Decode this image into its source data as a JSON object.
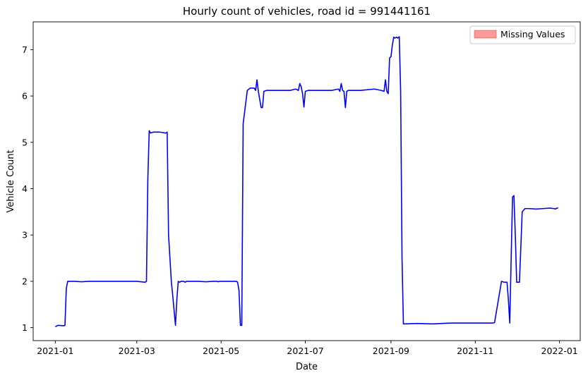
{
  "chart_data": {
    "type": "line",
    "title": "Hourly count of vehicles, road id = 991441161",
    "xlabel": "Date",
    "ylabel": "Vehicle Count",
    "xlim": [
      "2020-12-16",
      "2022-01-16"
    ],
    "ylim": [
      0.72,
      7.6
    ],
    "x_ticks": [
      "2021-01",
      "2021-03",
      "2021-05",
      "2021-07",
      "2021-09",
      "2021-11",
      "2022-01"
    ],
    "y_ticks": [
      1,
      2,
      3,
      4,
      5,
      6,
      7
    ],
    "grid": false,
    "legend_position": "top-right",
    "colors": {
      "line": "#0000ff",
      "missing_fill": "#ff9999",
      "missing_edge": "#ff0000"
    },
    "series": [
      {
        "name": "",
        "x": [
          "2021-01-01",
          "2021-01-03",
          "2021-01-07",
          "2021-01-08",
          "2021-01-09",
          "2021-01-10",
          "2021-01-15",
          "2021-01-20",
          "2021-01-25",
          "2021-02-01",
          "2021-02-10",
          "2021-02-20",
          "2021-03-01",
          "2021-03-07",
          "2021-03-08",
          "2021-03-09",
          "2021-03-10",
          "2021-03-11",
          "2021-03-13",
          "2021-03-18",
          "2021-03-22",
          "2021-03-23",
          "2021-03-24",
          "2021-03-26",
          "2021-03-27",
          "2021-03-29",
          "2021-03-30",
          "2021-03-31",
          "2021-04-01",
          "2021-04-02",
          "2021-04-03",
          "2021-04-04",
          "2021-04-05",
          "2021-04-06",
          "2021-04-15",
          "2021-04-20",
          "2021-04-25",
          "2021-04-28",
          "2021-04-29",
          "2021-04-30",
          "2021-05-01",
          "2021-05-05",
          "2021-05-10",
          "2021-05-12",
          "2021-05-13",
          "2021-05-14",
          "2021-05-15",
          "2021-05-16",
          "2021-05-17",
          "2021-05-20",
          "2021-05-22",
          "2021-05-25",
          "2021-05-26",
          "2021-05-27",
          "2021-05-28",
          "2021-05-30",
          "2021-05-31",
          "2021-06-01",
          "2021-06-03",
          "2021-06-10",
          "2021-06-20",
          "2021-06-24",
          "2021-06-26",
          "2021-06-27",
          "2021-06-28",
          "2021-06-29",
          "2021-06-30",
          "2021-07-01",
          "2021-07-03",
          "2021-07-10",
          "2021-07-20",
          "2021-07-25",
          "2021-07-26",
          "2021-07-27",
          "2021-07-28",
          "2021-07-29",
          "2021-07-30",
          "2021-07-31",
          "2021-08-01",
          "2021-08-03",
          "2021-08-10",
          "2021-08-20",
          "2021-08-25",
          "2021-08-27",
          "2021-08-28",
          "2021-08-29",
          "2021-08-30",
          "2021-08-31",
          "2021-09-01",
          "2021-09-02",
          "2021-09-03",
          "2021-09-04",
          "2021-09-05",
          "2021-09-06",
          "2021-09-07",
          "2021-09-08",
          "2021-09-09",
          "2021-09-10",
          "2021-09-20",
          "2021-10-01",
          "2021-10-15",
          "2021-11-01",
          "2021-11-10",
          "2021-11-13",
          "2021-11-14",
          "2021-11-15",
          "2021-11-20",
          "2021-11-22",
          "2021-11-23",
          "2021-11-24",
          "2021-11-25",
          "2021-11-26",
          "2021-11-27",
          "2021-11-28",
          "2021-11-29",
          "2021-11-30",
          "2021-12-01",
          "2021-12-02",
          "2021-12-03",
          "2021-12-05",
          "2021-12-07",
          "2021-12-10",
          "2021-12-15",
          "2021-12-20",
          "2021-12-25",
          "2021-12-28",
          "2021-12-29",
          "2021-12-30",
          "2021-12-31"
        ],
        "values": [
          1.02,
          1.05,
          1.04,
          1.05,
          1.85,
          2.0,
          2.0,
          1.99,
          2.0,
          2.0,
          2.0,
          2.0,
          2.0,
          1.98,
          2.0,
          4.2,
          5.25,
          5.2,
          5.22,
          5.22,
          5.2,
          5.22,
          3.0,
          2.0,
          1.7,
          1.05,
          1.6,
          2.0,
          1.98,
          2.0,
          2.0,
          2.0,
          1.98,
          2.0,
          2.0,
          1.99,
          2.0,
          2.0,
          1.99,
          2.0,
          2.0,
          2.0,
          2.0,
          2.0,
          1.98,
          1.8,
          1.05,
          1.05,
          5.4,
          6.12,
          6.17,
          6.17,
          6.12,
          6.35,
          6.1,
          5.75,
          5.75,
          6.1,
          6.12,
          6.12,
          6.12,
          6.15,
          6.12,
          6.27,
          6.2,
          6.05,
          5.76,
          6.1,
          6.12,
          6.12,
          6.12,
          6.15,
          6.1,
          6.27,
          6.12,
          6.1,
          5.75,
          6.1,
          6.12,
          6.12,
          6.12,
          6.15,
          6.12,
          6.1,
          6.35,
          6.1,
          6.05,
          6.82,
          6.85,
          7.1,
          7.27,
          7.25,
          7.27,
          7.25,
          7.28,
          6.1,
          2.5,
          1.08,
          1.09,
          1.08,
          1.1,
          1.1,
          1.1,
          1.1,
          1.1,
          1.11,
          2.0,
          1.98,
          1.98,
          1.98,
          1.6,
          1.1,
          2.5,
          3.82,
          3.85,
          3.0,
          1.98,
          1.98,
          1.98,
          3.5,
          3.57,
          3.57,
          3.56,
          3.57,
          3.58,
          3.57,
          3.56,
          3.58,
          3.58
        ]
      }
    ],
    "legend_label": "Missing Values"
  }
}
